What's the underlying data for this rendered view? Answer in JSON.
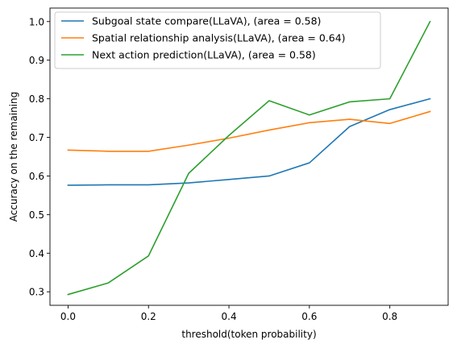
{
  "chart_data": {
    "type": "line",
    "title": "",
    "xlabel": "threshold(token probability)",
    "ylabel": "Accuracy on the remaining",
    "xlim": [
      -0.045,
      0.945
    ],
    "ylim": [
      0.265,
      1.035
    ],
    "xticks": [
      0.0,
      0.2,
      0.4,
      0.6,
      0.8
    ],
    "xtick_labels": [
      "0.0",
      "0.2",
      "0.4",
      "0.6",
      "0.8"
    ],
    "yticks": [
      0.3,
      0.4,
      0.5,
      0.6,
      0.7,
      0.8,
      0.9,
      1.0
    ],
    "ytick_labels": [
      "0.3",
      "0.4",
      "0.5",
      "0.6",
      "0.7",
      "0.8",
      "0.9",
      "1.0"
    ],
    "grid": false,
    "legend_position": "top-left",
    "x": [
      0.0,
      0.1,
      0.2,
      0.3,
      0.4,
      0.5,
      0.6,
      0.7,
      0.8,
      0.9
    ],
    "series": [
      {
        "name": "Subgoal state compare(LLaVA), (area = 0.58)",
        "color": "#1f77b4",
        "values": [
          0.576,
          0.577,
          0.577,
          0.582,
          0.591,
          0.6,
          0.634,
          0.728,
          0.772,
          0.8
        ]
      },
      {
        "name": "Spatial relationship analysis(LLaVA), (area = 0.64)",
        "color": "#ff7f0e",
        "values": [
          0.667,
          0.664,
          0.664,
          0.68,
          0.698,
          0.719,
          0.738,
          0.747,
          0.736,
          0.767
        ]
      },
      {
        "name": "Next action prediction(LLaVA), (area = 0.58)",
        "color": "#2ca02c",
        "values": [
          0.293,
          0.323,
          0.393,
          0.607,
          0.705,
          0.795,
          0.758,
          0.792,
          0.8,
          1.0
        ]
      }
    ]
  }
}
